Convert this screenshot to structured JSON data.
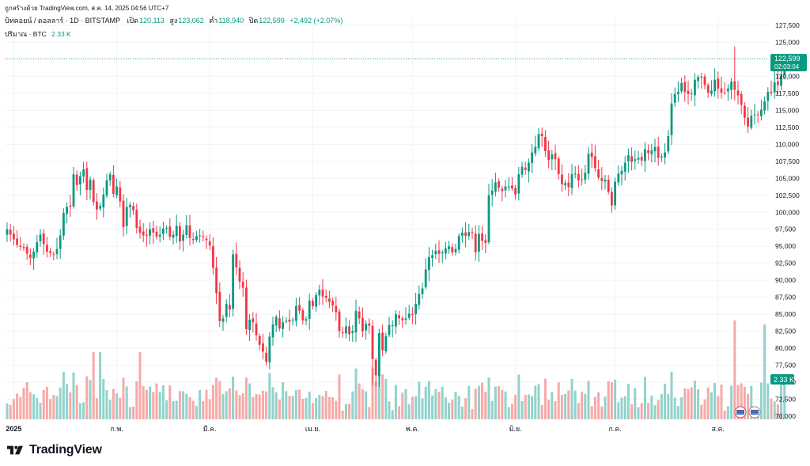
{
  "header": {
    "source_line": "ถูกสร้างด้วย TradingView.com, ส.ค. 14, 2025 04:56 UTC+7",
    "symbol": "บิทคอยน์ / ดอลลาร์ · 1D · BITSTAMP",
    "open_label": "เปิด",
    "open_value": "120,113",
    "high_label": "สูง",
    "high_value": "123,062",
    "low_label": "ต่ำ",
    "low_value": "118,940",
    "close_label": "ปิด",
    "close_value": "122,599",
    "change": "+2,492 (+2.07%)",
    "volume_label": "ปริมาณ · BTC",
    "volume_value": "2.33 K"
  },
  "price_label": {
    "price": "122,599",
    "countdown": "02:03:04"
  },
  "volume_label": "2.33 K",
  "colors": {
    "up": "#089981",
    "down": "#F23645",
    "up_vol": "#92D2CC",
    "down_vol": "#F7A9A7",
    "grid": "#F0F3FA",
    "text": "#131722"
  },
  "logo": {
    "text": "TradingView"
  },
  "chart_data": {
    "type": "candlestick",
    "title": "BTC/USD · 1D · BITSTAMP",
    "ylim": [
      70000,
      127500
    ],
    "y_ticks": [
      "127,500",
      "125,000",
      "122,500",
      "120,000",
      "117,500",
      "115,000",
      "112,500",
      "110,000",
      "107,500",
      "105,000",
      "102,500",
      "100,000",
      "97,500",
      "95,000",
      "92,500",
      "90,000",
      "87,500",
      "85,000",
      "82,500",
      "80,000",
      "77,500",
      "75,000",
      "72,500",
      "70,000"
    ],
    "x_labels": [
      {
        "label": "2025",
        "index": 2
      },
      {
        "label": "ก.พ.",
        "index": 33
      },
      {
        "label": "มี.ค.",
        "index": 61
      },
      {
        "label": "เม.ย.",
        "index": 92
      },
      {
        "label": "พ.ค.",
        "index": 122
      },
      {
        "label": "มิ.ย.",
        "index": 153
      },
      {
        "label": "ก.ค.",
        "index": 183
      },
      {
        "label": "ส.ค.",
        "index": 214
      }
    ],
    "last_price": 122599,
    "close": [
      97500,
      96700,
      96000,
      95200,
      94900,
      94700,
      93900,
      93300,
      94200,
      95600,
      96700,
      95300,
      94200,
      94000,
      93800,
      94600,
      96600,
      99900,
      100800,
      100800,
      105600,
      104000,
      105300,
      106300,
      103300,
      104800,
      101500,
      100400,
      100900,
      102600,
      104700,
      105600,
      102700,
      103800,
      101600,
      97800,
      100800,
      101100,
      100300,
      97700,
      97000,
      96600,
      96600,
      97500,
      97000,
      96400,
      96700,
      97600,
      97700,
      96400,
      96700,
      98000,
      95700,
      96700,
      98100,
      96200,
      95900,
      96500,
      96600,
      96300,
      95900,
      95100,
      91800,
      88100,
      84000,
      84400,
      86500,
      85700,
      93800,
      91900,
      89800,
      88900,
      82800,
      84200,
      83800,
      81900,
      80500,
      79500,
      78000,
      81700,
      83500,
      84600,
      82900,
      83800,
      84000,
      83900,
      84200,
      86200,
      85500,
      84100,
      84300,
      87000,
      86200,
      87800,
      88600,
      87600,
      87400,
      86800,
      86300,
      85300,
      82500,
      82200,
      83200,
      82100,
      82500,
      85500,
      84400,
      82500,
      83600,
      83300,
      78400,
      76000,
      82200,
      79700,
      81800,
      83400,
      83400,
      85000,
      84400,
      84100,
      84400,
      85100,
      84900,
      86500,
      88000,
      88800,
      91600,
      93400,
      93700,
      94300,
      93900,
      94100,
      94700,
      95000,
      94100,
      94600,
      96500,
      97000,
      96500,
      97100,
      97000,
      94100,
      96800,
      95800,
      95500,
      102500,
      103200,
      104400,
      103600,
      103100,
      103800,
      103800,
      103500,
      102600,
      105600,
      106700,
      106200,
      107300,
      108800,
      109600,
      111500,
      111200,
      109000,
      107700,
      108500,
      107800,
      105600,
      104100,
      104300,
      103700,
      105600,
      105700,
      104700,
      104800,
      105800,
      108600,
      108100,
      106500,
      105100,
      104600,
      104800,
      103000,
      101000,
      104500,
      105700,
      106100,
      107300,
      108400,
      107400,
      107800,
      108000,
      107600,
      109300,
      108700,
      109100,
      109600,
      108000,
      108200,
      108800,
      111200,
      116000,
      117400,
      117700,
      119000,
      117700,
      117400,
      117400,
      119500,
      119900,
      119800,
      118700,
      117600,
      117900,
      119500,
      118200,
      117600,
      117600,
      118200,
      119200,
      118000,
      117200,
      115800,
      113900,
      112600,
      114200,
      114400,
      114300,
      115100,
      116300,
      117700,
      117500,
      119100,
      118700,
      120100,
      122600
    ],
    "highs_peak": {
      "all_time_high": 124400
    }
  }
}
